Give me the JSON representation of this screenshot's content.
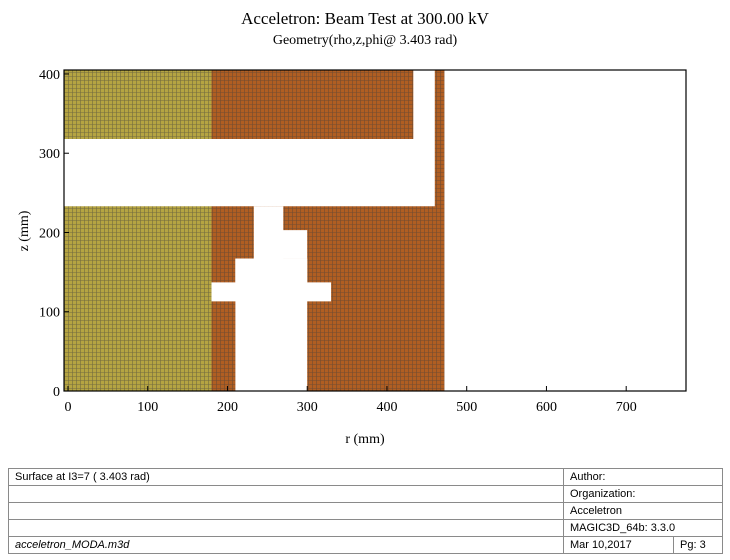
{
  "chart_data": {
    "type": "geometry-plot",
    "title": "Acceletron: Beam Test at 300.00 kV",
    "subtitle": "Geometry(rho,z,phi@ 3.403 rad)",
    "xlabel": "r (mm)",
    "ylabel": "z (mm)",
    "xlim": [
      -5,
      775
    ],
    "ylim": [
      0,
      405
    ],
    "xticks": [
      0,
      100,
      200,
      300,
      400,
      500,
      600,
      700
    ],
    "yticks": [
      0,
      100,
      200,
      300,
      400
    ],
    "grid": false,
    "materials": {
      "olive": "#b5a442",
      "copper": "#b05e22",
      "mesh": "#3c3c3c",
      "void": "#ffffff"
    },
    "regions": [
      {
        "material": "olive",
        "polygon": [
          [
            -5,
            0
          ],
          [
            180,
            0
          ],
          [
            180,
            405
          ],
          [
            -5,
            405
          ]
        ]
      },
      {
        "material": "copper",
        "polygon": [
          [
            180,
            0
          ],
          [
            472,
            0
          ],
          [
            472,
            405
          ],
          [
            180,
            405
          ]
        ]
      },
      {
        "material": "void",
        "polygon": [
          [
            -5,
            233
          ],
          [
            460,
            233
          ],
          [
            460,
            318
          ],
          [
            -5,
            318
          ]
        ]
      },
      {
        "material": "void",
        "polygon": [
          [
            433,
            318
          ],
          [
            460,
            318
          ],
          [
            460,
            405
          ],
          [
            433,
            405
          ]
        ]
      },
      {
        "material": "void",
        "polygon": [
          [
            233,
            233
          ],
          [
            270,
            233
          ],
          [
            270,
            0
          ],
          [
            233,
            0
          ]
        ]
      },
      {
        "material": "void",
        "polygon": [
          [
            210,
            0
          ],
          [
            300,
            0
          ],
          [
            300,
            167
          ],
          [
            210,
            167
          ]
        ]
      },
      {
        "material": "void",
        "polygon": [
          [
            180,
            113
          ],
          [
            330,
            113
          ],
          [
            330,
            137
          ],
          [
            180,
            137
          ]
        ]
      },
      {
        "material": "void",
        "polygon": [
          [
            210,
            137
          ],
          [
            300,
            137
          ],
          [
            300,
            167
          ],
          [
            210,
            167
          ]
        ]
      },
      {
        "material": "void",
        "polygon": [
          [
            240,
            167
          ],
          [
            300,
            167
          ],
          [
            300,
            203
          ],
          [
            240,
            203
          ]
        ]
      },
      {
        "material": "void",
        "polygon": [
          [
            210,
            137
          ],
          [
            233,
            137
          ],
          [
            233,
            167
          ],
          [
            210,
            167
          ]
        ]
      }
    ]
  },
  "info": {
    "surface": "Surface at I3=7 ( 3.403 rad)",
    "author_label": "Author:",
    "org_label": "Organization:",
    "org_value": "Acceletron",
    "program": "MAGIC3D_64b: 3.3.0",
    "filename": "acceletron_MODA.m3d",
    "date": "Mar 10,2017",
    "page": "Pg: 3"
  }
}
